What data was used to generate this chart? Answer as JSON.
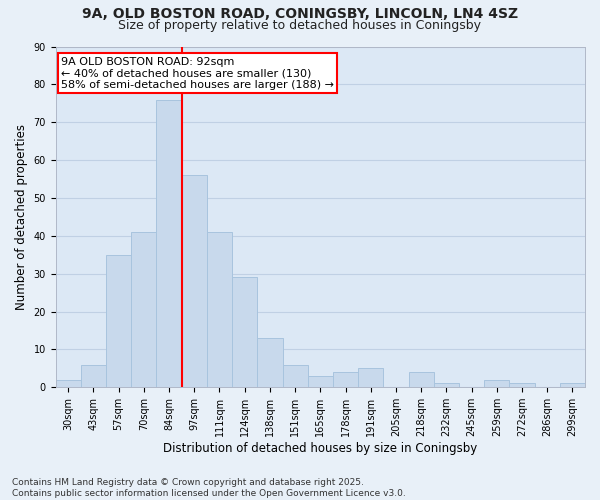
{
  "title_line1": "9A, OLD BOSTON ROAD, CONINGSBY, LINCOLN, LN4 4SZ",
  "title_line2": "Size of property relative to detached houses in Coningsby",
  "xlabel": "Distribution of detached houses by size in Coningsby",
  "ylabel": "Number of detached properties",
  "categories": [
    "30sqm",
    "43sqm",
    "57sqm",
    "70sqm",
    "84sqm",
    "97sqm",
    "111sqm",
    "124sqm",
    "138sqm",
    "151sqm",
    "165sqm",
    "178sqm",
    "191sqm",
    "205sqm",
    "218sqm",
    "232sqm",
    "245sqm",
    "259sqm",
    "272sqm",
    "286sqm",
    "299sqm"
  ],
  "values": [
    2,
    6,
    35,
    41,
    76,
    56,
    41,
    29,
    13,
    6,
    3,
    4,
    5,
    0,
    4,
    1,
    0,
    2,
    1,
    0,
    1
  ],
  "bar_color": "#c8d9ec",
  "bar_edge_color": "#a8c4de",
  "grid_color": "#c0d0e4",
  "background_color": "#dce8f5",
  "fig_background_color": "#e8f0f8",
  "vline_x": 4.5,
  "vline_color": "red",
  "annotation_text": "9A OLD BOSTON ROAD: 92sqm\n← 40% of detached houses are smaller (130)\n58% of semi-detached houses are larger (188) →",
  "ylim": [
    0,
    90
  ],
  "yticks": [
    0,
    10,
    20,
    30,
    40,
    50,
    60,
    70,
    80,
    90
  ],
  "footnote": "Contains HM Land Registry data © Crown copyright and database right 2025.\nContains public sector information licensed under the Open Government Licence v3.0.",
  "title_fontsize": 10,
  "subtitle_fontsize": 9,
  "axis_label_fontsize": 8.5,
  "tick_fontsize": 7,
  "footnote_fontsize": 6.5,
  "annot_fontsize": 8
}
